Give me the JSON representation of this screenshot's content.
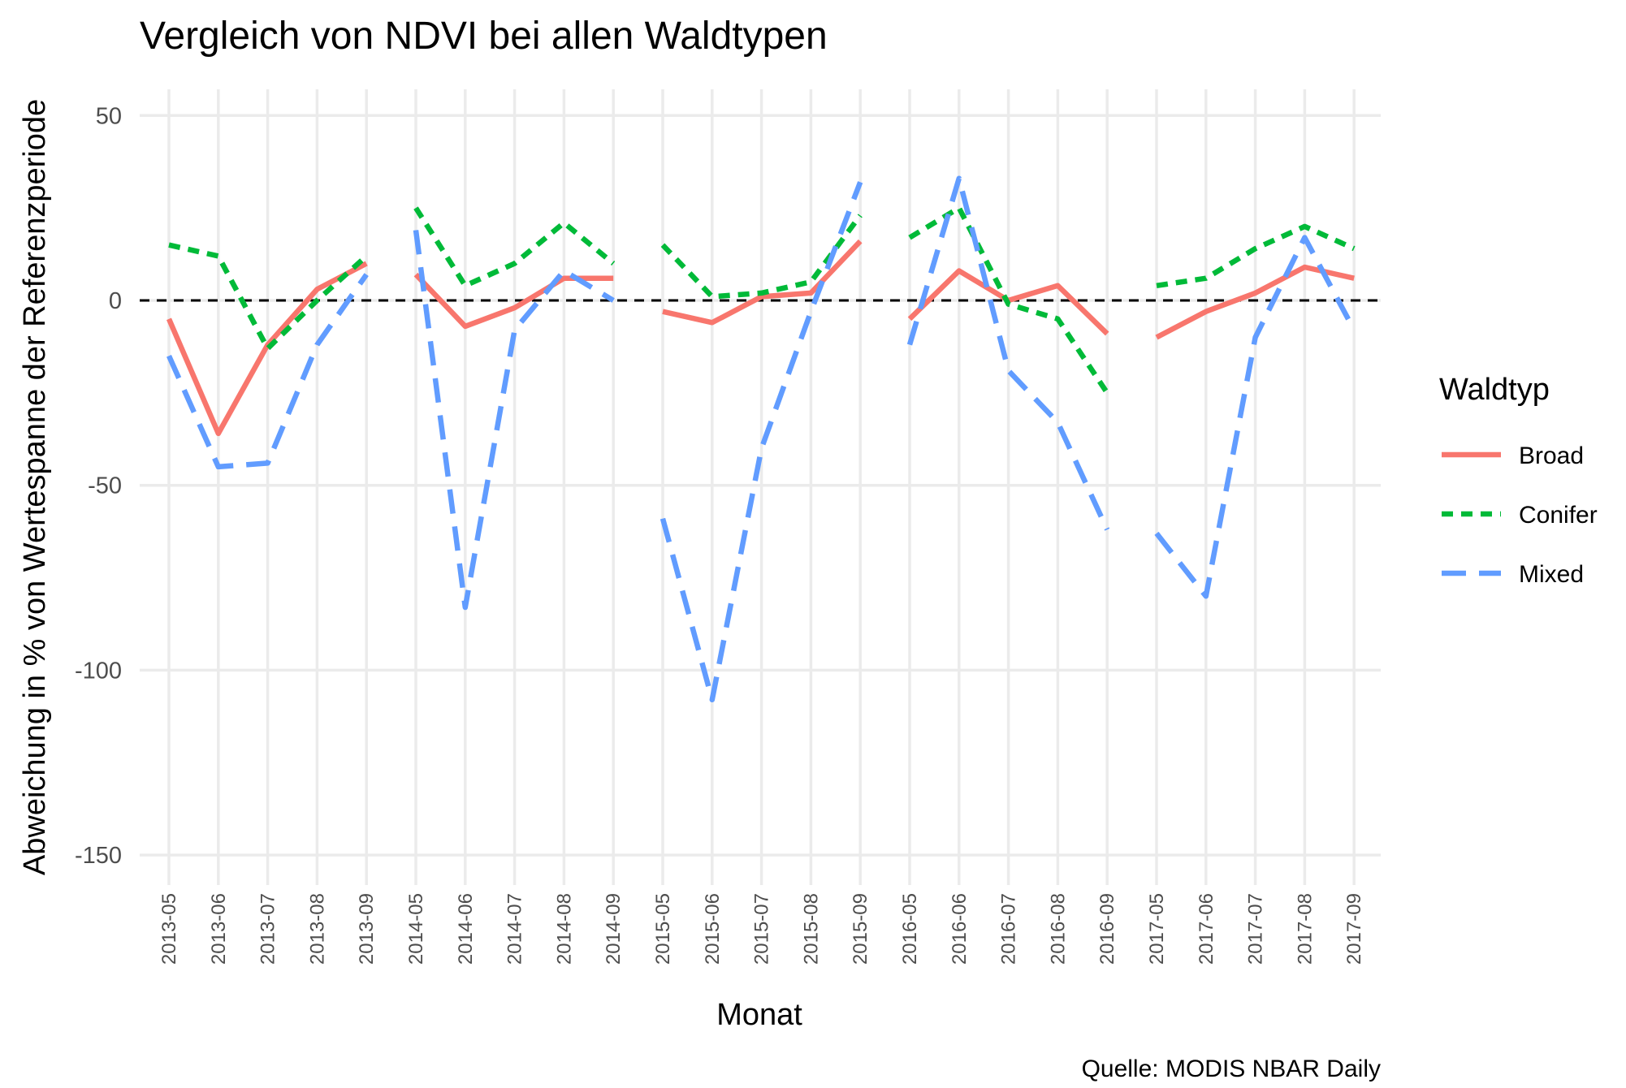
{
  "chart_data": {
    "type": "line",
    "title": "Vergleich von NDVI bei allen Waldtypen",
    "xlabel": "Monat",
    "ylabel": "Abweichung in % von Wertespanne der Referenzperiode",
    "caption": "Quelle: MODIS NBAR Daily",
    "ylim": [
      -155,
      60
    ],
    "y_ticks": [
      50,
      0,
      -50,
      -100,
      -150
    ],
    "y_tick_labels": [
      "50",
      "0",
      "-50",
      "-100",
      "-150"
    ],
    "reference_line": 0,
    "grid": true,
    "legend_title": "Waldtyp",
    "legend_position": "right",
    "x": [
      "2013-05",
      "2013-06",
      "2013-07",
      "2013-08",
      "2013-09",
      "2014-05",
      "2014-06",
      "2014-07",
      "2014-08",
      "2014-09",
      "2015-05",
      "2015-06",
      "2015-07",
      "2015-08",
      "2015-09",
      "2016-05",
      "2016-06",
      "2016-07",
      "2016-08",
      "2016-09",
      "2017-05",
      "2017-06",
      "2017-07",
      "2017-08",
      "2017-09"
    ],
    "series": [
      {
        "name": "Broad",
        "color": "#F8766D",
        "dash": "solid",
        "values": [
          -5,
          -36,
          -12,
          3,
          10,
          7,
          -7,
          -2,
          6,
          6,
          -3,
          -6,
          1,
          2,
          16,
          -5,
          8,
          0,
          4,
          -9,
          -10,
          -3,
          2,
          9,
          6
        ]
      },
      {
        "name": "Conifer",
        "color": "#00BA38",
        "dash": "dotted",
        "values": [
          15,
          12,
          -13,
          0,
          12,
          25,
          4,
          10,
          21,
          10,
          15,
          1,
          2,
          5,
          23,
          17,
          25,
          -1,
          -5,
          -25,
          4,
          6,
          14,
          20,
          14
        ]
      },
      {
        "name": "Mixed",
        "color": "#619CFF",
        "dash": "dashed",
        "values": [
          -15,
          -45,
          -44,
          -12,
          7,
          19,
          -83,
          -8,
          8,
          0,
          -59,
          -108,
          -40,
          -3,
          32,
          -12,
          33,
          -19,
          -33,
          -62,
          -63,
          -80,
          -10,
          17,
          -8
        ]
      }
    ]
  }
}
